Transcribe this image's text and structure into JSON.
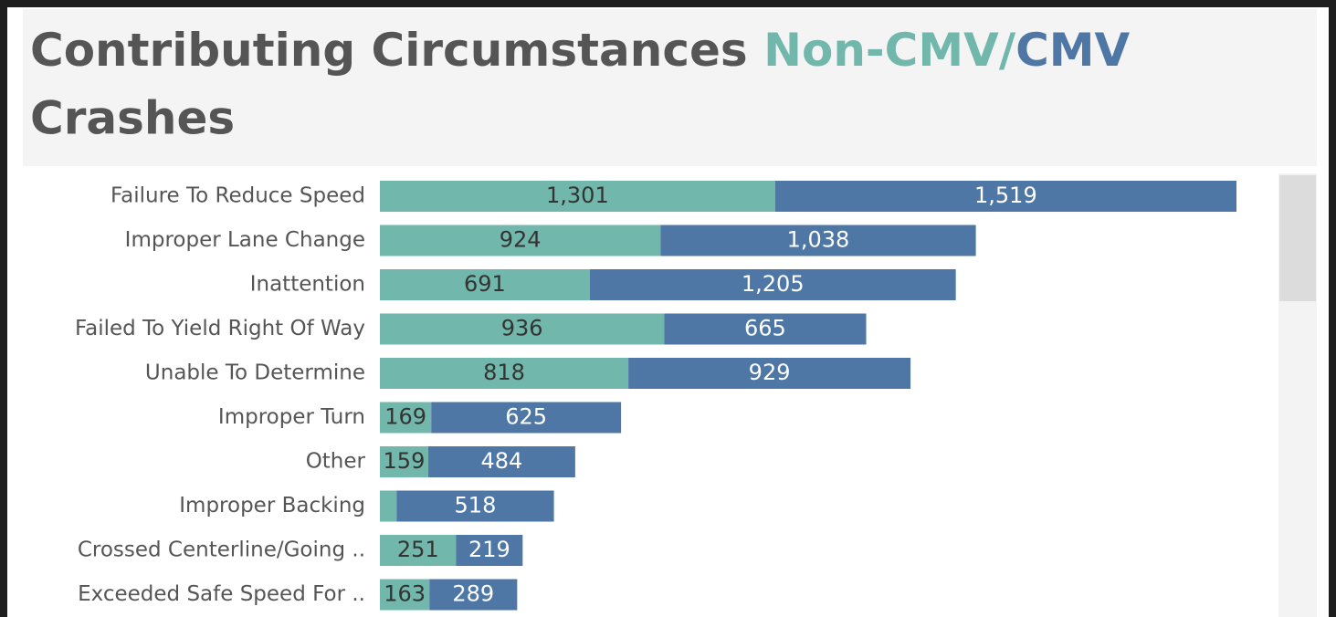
{
  "chart_data": {
    "type": "stacked-bar-horizontal",
    "title_start": "Contributing Circumstances",
    "title_separator": "/",
    "title_end": "Crashes",
    "categories": [
      "Failure To Reduce Speed",
      "Improper Lane Change",
      "Inattention",
      "Failed To Yield Right Of Way",
      "Unable To Determine",
      "Improper Turn",
      "Other",
      "Improper Backing",
      "Crossed Centerline/Going ..",
      "Exceeded Safe Speed For .."
    ],
    "series": [
      {
        "name": "Non-CMV",
        "color": "#72b7ab",
        "label_color": "#333333",
        "values": [
          1301,
          924,
          691,
          936,
          818,
          169,
          159,
          55,
          251,
          163
        ],
        "value_labels": [
          "1,301",
          "924",
          "691",
          "936",
          "818",
          "169",
          "159",
          null,
          "251",
          "163"
        ]
      },
      {
        "name": "CMV",
        "color": "#4e77a6",
        "label_color": "#ffffff",
        "values": [
          1519,
          1038,
          1205,
          665,
          929,
          625,
          484,
          518,
          219,
          289
        ],
        "value_labels": [
          "1,519",
          "1,038",
          "1,205",
          "665",
          "929",
          "625",
          "484",
          "518",
          "219",
          "289"
        ]
      }
    ]
  }
}
